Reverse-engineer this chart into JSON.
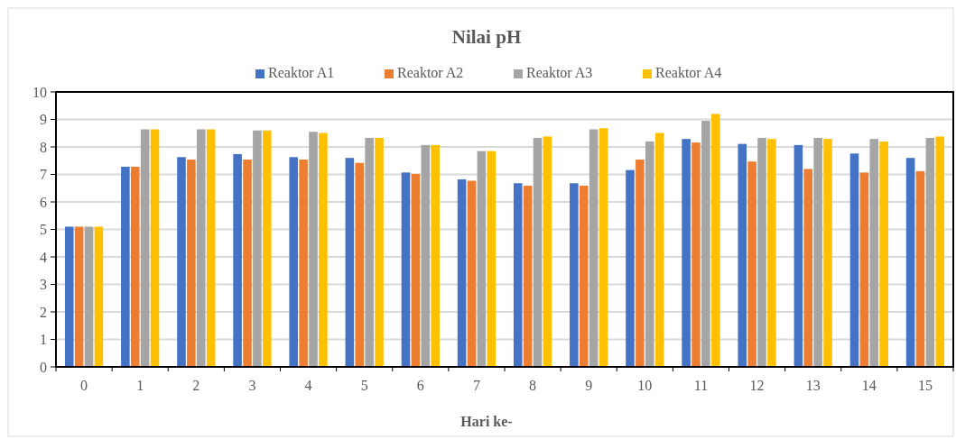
{
  "chart_data": {
    "type": "bar",
    "title": "Nilai pH",
    "xlabel": "Hari ke-",
    "categories": [
      "0",
      "1",
      "2",
      "3",
      "4",
      "5",
      "6",
      "7",
      "8",
      "9",
      "10",
      "11",
      "12",
      "13",
      "14",
      "15"
    ],
    "series": [
      {
        "name": "Reaktor A1",
        "color": "#4472c4",
        "values": [
          5.1,
          7.28,
          7.63,
          7.74,
          7.63,
          7.6,
          7.07,
          6.82,
          6.68,
          6.68,
          7.16,
          8.29,
          8.11,
          8.07,
          7.76,
          7.6
        ]
      },
      {
        "name": "Reaktor A2",
        "color": "#ed7d31",
        "values": [
          5.1,
          7.28,
          7.54,
          7.54,
          7.54,
          7.42,
          7.02,
          6.77,
          6.59,
          6.59,
          7.54,
          8.16,
          7.47,
          7.2,
          7.07,
          7.12
        ]
      },
      {
        "name": "Reaktor A3",
        "color": "#a5a5a5",
        "values": [
          5.1,
          8.64,
          8.64,
          8.6,
          8.55,
          8.33,
          8.07,
          7.85,
          8.33,
          8.64,
          8.2,
          8.95,
          8.33,
          8.33,
          8.29,
          8.33
        ]
      },
      {
        "name": "Reaktor A4",
        "color": "#ffc000",
        "values": [
          5.1,
          8.64,
          8.64,
          8.6,
          8.51,
          8.33,
          8.07,
          7.85,
          8.38,
          8.68,
          8.51,
          9.2,
          8.29,
          8.29,
          8.2,
          8.38
        ]
      }
    ],
    "ylim": [
      0,
      10
    ],
    "yticks": [
      0,
      1,
      2,
      3,
      4,
      5,
      6,
      7,
      8,
      9,
      10
    ],
    "grid": "y",
    "legend": "top"
  }
}
